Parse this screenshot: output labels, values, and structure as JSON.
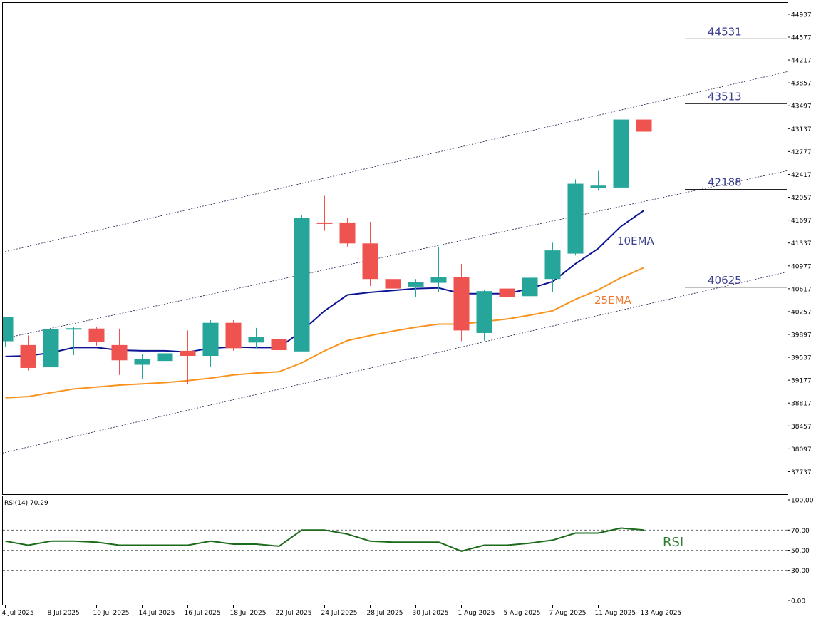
{
  "chart_data": {
    "type": "candlestick",
    "y_ticks": [
      "44937",
      "44577",
      "44217",
      "43857",
      "43497",
      "43137",
      "42777",
      "42417",
      "42057",
      "41697",
      "41337",
      "40977",
      "40617",
      "40257",
      "39897",
      "39537",
      "39177",
      "38817",
      "38457",
      "38097",
      "37737"
    ],
    "x_ticks": [
      "4 Jul 2025",
      "8 Jul 2025",
      "10 Jul 2025",
      "14 Jul 2025",
      "16 Jul 2025",
      "18 Jul 2025",
      "22 Jul 2025",
      "24 Jul 2025",
      "28 Jul 2025",
      "30 Jul 2025",
      "1 Aug 2025",
      "5 Aug 2025",
      "7 Aug 2025",
      "11 Aug 2025",
      "13 Aug 2025"
    ],
    "ylim": [
      37400,
      45110
    ],
    "candles": [
      {
        "o": 39790,
        "h": 40170,
        "l": 39700,
        "c": 40170
      },
      {
        "o": 39730,
        "h": 39880,
        "l": 39330,
        "c": 39370
      },
      {
        "o": 39380,
        "h": 40040,
        "l": 39360,
        "c": 39980
      },
      {
        "o": 39975,
        "h": 40020,
        "l": 39570,
        "c": 39995
      },
      {
        "o": 39990,
        "h": 40020,
        "l": 39720,
        "c": 39780
      },
      {
        "o": 39730,
        "h": 39990,
        "l": 39260,
        "c": 39490
      },
      {
        "o": 39420,
        "h": 39590,
        "l": 39190,
        "c": 39510
      },
      {
        "o": 39480,
        "h": 39810,
        "l": 39440,
        "c": 39600
      },
      {
        "o": 39640,
        "h": 39960,
        "l": 39110,
        "c": 39560
      },
      {
        "o": 39560,
        "h": 40120,
        "l": 39380,
        "c": 40080
      },
      {
        "o": 40080,
        "h": 40120,
        "l": 39640,
        "c": 39680
      },
      {
        "o": 39770,
        "h": 40000,
        "l": 39680,
        "c": 39860
      },
      {
        "o": 39830,
        "h": 40280,
        "l": 39470,
        "c": 39650
      },
      {
        "o": 39630,
        "h": 41770,
        "l": 39630,
        "c": 41730
      },
      {
        "o": 41660,
        "h": 42080,
        "l": 41530,
        "c": 41650
      },
      {
        "o": 41660,
        "h": 41730,
        "l": 41280,
        "c": 41330
      },
      {
        "o": 41330,
        "h": 41670,
        "l": 40660,
        "c": 40770
      },
      {
        "o": 40770,
        "h": 40970,
        "l": 40610,
        "c": 40620
      },
      {
        "o": 40650,
        "h": 40770,
        "l": 40490,
        "c": 40720
      },
      {
        "o": 40710,
        "h": 41280,
        "l": 40560,
        "c": 40800
      },
      {
        "o": 40800,
        "h": 41010,
        "l": 39790,
        "c": 39960
      },
      {
        "o": 39920,
        "h": 40600,
        "l": 39800,
        "c": 40580
      },
      {
        "o": 40620,
        "h": 40650,
        "l": 40330,
        "c": 40490
      },
      {
        "o": 40500,
        "h": 40910,
        "l": 40400,
        "c": 40790
      },
      {
        "o": 40770,
        "h": 41340,
        "l": 40570,
        "c": 41220
      },
      {
        "o": 41170,
        "h": 42340,
        "l": 41140,
        "c": 42270
      },
      {
        "o": 42200,
        "h": 42470,
        "l": 42170,
        "c": 42240
      },
      {
        "o": 42210,
        "h": 43380,
        "l": 42170,
        "c": 43280
      },
      {
        "o": 43280,
        "h": 43500,
        "l": 43040,
        "c": 43090
      }
    ],
    "ema10": [
      39550,
      39560,
      39610,
      39690,
      39690,
      39650,
      39640,
      39640,
      39620,
      39680,
      39700,
      39690,
      39690,
      39950,
      40270,
      40520,
      40560,
      40590,
      40620,
      40630,
      40540,
      40540,
      40540,
      40620,
      40730,
      41010,
      41250,
      41600,
      41850
    ],
    "ema25": [
      38900,
      38920,
      38980,
      39040,
      39070,
      39100,
      39120,
      39140,
      39170,
      39210,
      39260,
      39290,
      39310,
      39450,
      39640,
      39800,
      39880,
      39950,
      40010,
      40060,
      40060,
      40100,
      40140,
      40200,
      40270,
      40450,
      40600,
      40790,
      40950
    ],
    "channel": {
      "x0": -0.5,
      "x1": 34.5,
      "upper": [
        41160,
        44050
      ],
      "middle": [
        39800,
        42490
      ],
      "lower": [
        38000,
        40900
      ]
    },
    "levels": [
      {
        "label": "44531",
        "value": 44550
      },
      {
        "label": "43513",
        "value": 43530
      },
      {
        "label": "42188",
        "value": 42180
      },
      {
        "label": "40625",
        "value": 40640
      }
    ],
    "annotations": {
      "ema10_label": "10EMA",
      "ema25_label": "25EMA",
      "rsi_label": "RSI"
    },
    "rsi": {
      "title": "RSI(14) 70.29",
      "ticks": [
        "100.00",
        "70.00",
        "50.00",
        "30.00",
        "0.00"
      ],
      "tick_values": [
        100,
        70,
        50,
        30,
        0
      ],
      "levels": [
        70,
        50,
        30
      ],
      "values": [
        59,
        55,
        59,
        59,
        58,
        55,
        55,
        55,
        55,
        59,
        56,
        56,
        54,
        70,
        70,
        66,
        59,
        58,
        58,
        58,
        49,
        55,
        55,
        57,
        60,
        67,
        67,
        72,
        70
      ]
    },
    "colors": {
      "bull": "#26a69a",
      "bear": "#ef5350",
      "ema10": "#0d1494",
      "ema25": "#f7931e",
      "rsi_line": "#1b6b1b",
      "rsi_label": "#2e7d32",
      "level_text": "#3b3f8f",
      "ema10_label": "#3b3f8f",
      "ema25_label": "#f07830"
    }
  }
}
